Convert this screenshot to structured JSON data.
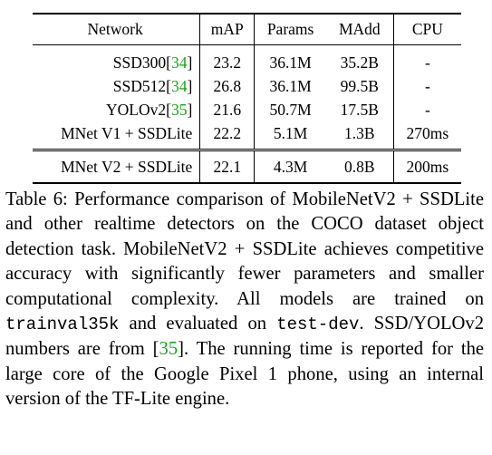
{
  "table": {
    "headers": [
      "Network",
      "mAP",
      "Params",
      "MAdd",
      "CPU"
    ],
    "rows": [
      {
        "network": "SSD300",
        "ref": "34",
        "map": "23.2",
        "params": "36.1M",
        "madd": "35.2B",
        "cpu": "-"
      },
      {
        "network": "SSD512",
        "ref": "34",
        "map": "26.8",
        "params": "36.1M",
        "madd": "99.5B",
        "cpu": "-"
      },
      {
        "network": "YOLOv2",
        "ref": "35",
        "map": "21.6",
        "params": "50.7M",
        "madd": "17.5B",
        "cpu": "-"
      },
      {
        "network": "MNet V1 + SSDLite",
        "ref": "",
        "map": "22.2",
        "params": "5.1M",
        "madd": "1.3B",
        "cpu": "270ms"
      }
    ],
    "ours": {
      "network": "MNet V2 + SSDLite",
      "map": "22.1",
      "params": "4.3M",
      "madd": "0.8B",
      "cpu": "200ms"
    }
  },
  "caption": {
    "part1": "Table 6: Performance comparison of MobileNetV2 + SSDLite and other realtime detectors on the COCO dataset object detection task. MobileNetV2 + SSDLite achieves competitive accuracy with significantly fewer parameters and smaller computational complexity. All models are trained on ",
    "code1": "trainval35k",
    "part2": " and evaluated on ",
    "code2": "test-dev",
    "part3": ". SSD/YOLOv2 numbers are from [",
    "ref": "35",
    "part4": "]. The running time is reported for the large core of the Google Pixel 1 phone, using an internal version of the TF-Lite engine."
  }
}
